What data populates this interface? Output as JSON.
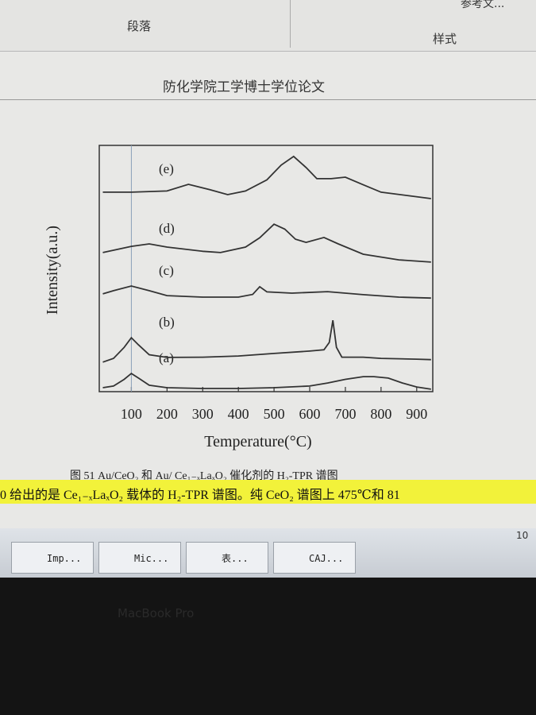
{
  "ribbon": {
    "groups": [
      "段落",
      "样式"
    ],
    "buttons": [
      "参考文..."
    ]
  },
  "document": {
    "header": "防化学院工学博士学位论文",
    "caption": "图 51 Au/CeO₂ 和 Au/ Ce₁₋ₓLaₓO₂ 催化剂的 H₂-TPR 谱图",
    "body_line": "0 给出的是 Ce₁₋ₓLaₓO₂ 载体的 H₂-TPR 谱图。纯 CeO₂ 谱图上 475℃和 81"
  },
  "chart_data": {
    "type": "line",
    "x_label": "Temperature(°C)",
    "y_label": "Intensity(a.u.)",
    "xlim": [
      10,
      945
    ],
    "xticks": [
      100,
      200,
      300,
      400,
      500,
      600,
      700,
      800,
      900
    ],
    "ylim": [
      0,
      100
    ],
    "reference_x": 100,
    "color": "#333333",
    "series": [
      {
        "name": "(a)",
        "x": [
          20,
          50,
          80,
          100,
          120,
          150,
          200,
          300,
          400,
          500,
          600,
          650,
          700,
          750,
          780,
          820,
          860,
          900,
          940
        ],
        "values": [
          1.6,
          2.3,
          5,
          7.4,
          5.5,
          2.6,
          1.6,
          1.3,
          1.3,
          1.6,
          2.3,
          3.5,
          5,
          6.1,
          6.1,
          5.5,
          3.5,
          1.9,
          1
        ]
      },
      {
        "name": "(b)",
        "x": [
          20,
          50,
          80,
          100,
          120,
          150,
          200,
          300,
          400,
          500,
          600,
          640,
          655,
          665,
          675,
          690,
          750,
          800,
          900,
          940
        ],
        "values": [
          12,
          13.5,
          18,
          21.9,
          19,
          15,
          13.9,
          14,
          14.5,
          15.5,
          16.5,
          17,
          20,
          29,
          18,
          14,
          14,
          13.5,
          13.2,
          13
        ]
      },
      {
        "name": "(c)",
        "x": [
          20,
          50,
          100,
          150,
          200,
          300,
          400,
          440,
          460,
          480,
          550,
          650,
          750,
          850,
          940
        ],
        "values": [
          39.7,
          41,
          42.9,
          41,
          39,
          38.4,
          38.4,
          39.5,
          42.6,
          40.5,
          40,
          40.6,
          39.4,
          38.4,
          38
        ]
      },
      {
        "name": "(d)",
        "x": [
          20,
          100,
          150,
          200,
          300,
          350,
          420,
          460,
          500,
          530,
          560,
          590,
          640,
          680,
          750,
          850,
          940
        ],
        "values": [
          56.5,
          59,
          60,
          58.7,
          57,
          56.5,
          58.7,
          62.5,
          68,
          66,
          61.9,
          60.6,
          62.6,
          60,
          55.8,
          53.5,
          52.6
        ]
      },
      {
        "name": "(e)",
        "x": [
          20,
          100,
          200,
          260,
          320,
          370,
          420,
          480,
          520,
          555,
          590,
          620,
          660,
          700,
          750,
          800,
          880,
          940
        ],
        "values": [
          81,
          81,
          81.5,
          84.2,
          82,
          80,
          81.5,
          86,
          92,
          95.5,
          91,
          86.5,
          86.5,
          87.1,
          84,
          81,
          79.5,
          78.4
        ]
      }
    ]
  },
  "taskbar": {
    "items": [
      "Imp...",
      "Mic...",
      "表...",
      "CAJ..."
    ],
    "status": "10"
  },
  "bezel": {
    "label": "MacBook Pro"
  }
}
